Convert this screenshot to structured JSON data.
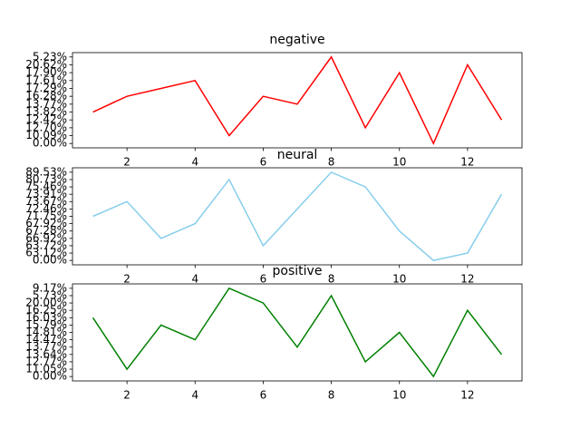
{
  "chart_data": [
    {
      "type": "line",
      "title": "negative",
      "x": [
        1,
        2,
        3,
        4,
        5,
        6,
        7,
        8,
        9,
        10,
        11,
        12,
        13
      ],
      "xlim": [
        0.4,
        13.6
      ],
      "xticks": [
        2,
        4,
        6,
        8,
        10,
        12
      ],
      "ycategories": [
        "0.00%",
        "10.09%",
        "12.70%",
        "12.42%",
        "13.82%",
        "13.77%",
        "16.28%",
        "17.29%",
        "17.61%",
        "17.90%",
        "20.62%",
        "5.23%"
      ],
      "series": [
        {
          "color": "#ff0000",
          "values": [
            "13.82%",
            "16.28%",
            "17.29%",
            "17.61%",
            "10.09%",
            "16.28%",
            "13.77%",
            "5.23%",
            "12.70%",
            "17.90%",
            "0.00%",
            "20.62%",
            "12.42%"
          ]
        }
      ]
    },
    {
      "type": "line",
      "title": "neural",
      "x": [
        1,
        2,
        3,
        4,
        5,
        6,
        7,
        8,
        9,
        10,
        11,
        12,
        13
      ],
      "xlim": [
        0.4,
        13.6
      ],
      "xticks": [
        2,
        4,
        6,
        8,
        10,
        12
      ],
      "ycategories": [
        "0.00%",
        "63.12%",
        "63.72%",
        "66.92%",
        "67.28%",
        "67.92%",
        "71.75%",
        "72.46%",
        "73.67%",
        "73.91%",
        "75.46%",
        "80.73%",
        "89.53%"
      ],
      "series": [
        {
          "color": "#87ceeb",
          "values": [
            "71.75%",
            "73.67%",
            "66.92%",
            "67.92%",
            "80.73%",
            "63.72%",
            "72.46%",
            "89.53%",
            "75.46%",
            "67.28%",
            "0.00%",
            "63.12%",
            "73.91%"
          ]
        }
      ]
    },
    {
      "type": "line",
      "title": "positive",
      "x": [
        1,
        2,
        3,
        4,
        5,
        6,
        7,
        8,
        9,
        10,
        11,
        12,
        13
      ],
      "xlim": [
        0.4,
        13.6
      ],
      "xticks": [
        2,
        4,
        6,
        8,
        10,
        12
      ],
      "ycategories": [
        "0.00%",
        "11.05%",
        "12.77%",
        "13.64%",
        "13.77%",
        "14.47%",
        "14.81%",
        "15.79%",
        "16.03%",
        "16.25%",
        "20.00%",
        "5.73%",
        "9.17%"
      ],
      "series": [
        {
          "color": "#008000",
          "values": [
            "16.03%",
            "11.05%",
            "15.79%",
            "14.47%",
            "9.17%",
            "20.00%",
            "13.77%",
            "5.73%",
            "12.77%",
            "14.81%",
            "0.00%",
            "16.25%",
            "13.64%"
          ]
        }
      ]
    }
  ]
}
